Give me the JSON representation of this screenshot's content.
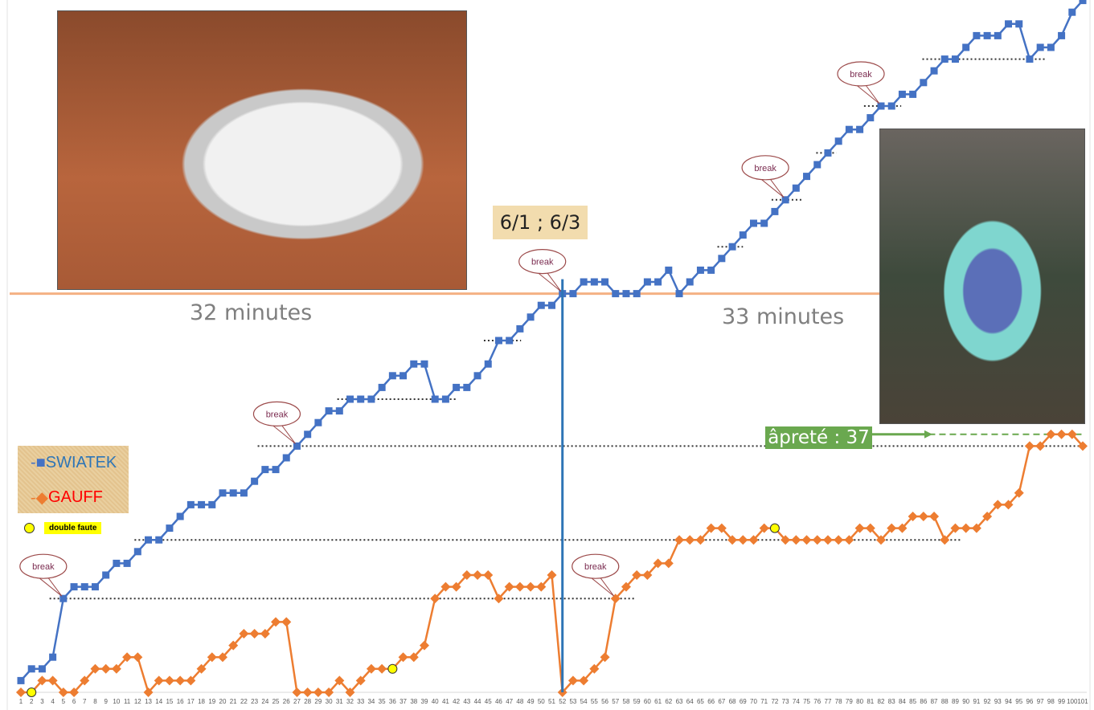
{
  "chart_data": {
    "type": "line",
    "x": [
      1,
      2,
      3,
      4,
      5,
      6,
      7,
      8,
      9,
      10,
      11,
      12,
      13,
      14,
      15,
      16,
      17,
      18,
      19,
      20,
      21,
      22,
      23,
      24,
      25,
      26,
      27,
      28,
      29,
      30,
      31,
      32,
      33,
      34,
      35,
      36,
      37,
      38,
      39,
      40,
      41,
      42,
      43,
      44,
      45,
      46,
      47,
      48,
      49,
      50,
      51,
      52,
      53,
      54,
      55,
      56,
      57,
      58,
      59,
      60,
      61,
      62,
      63,
      64,
      65,
      66,
      67,
      68,
      69,
      70,
      71,
      72,
      73,
      74,
      75,
      76,
      77,
      78,
      79,
      80,
      81,
      82,
      83,
      84,
      85,
      86,
      87,
      88,
      89,
      90,
      91,
      92,
      93,
      94,
      95,
      96,
      97,
      98,
      99,
      100,
      101
    ],
    "series": [
      {
        "name": "SWIATEK",
        "color": "#4472c4",
        "marker": "square",
        "values": [
          1,
          2,
          2,
          3,
          8,
          9,
          9,
          9,
          10,
          11,
          11,
          12,
          13,
          13,
          14,
          15,
          16,
          16,
          16,
          17,
          17,
          17,
          18,
          19,
          19,
          20,
          21,
          22,
          23,
          24,
          24,
          25,
          25,
          25,
          26,
          27,
          27,
          28,
          28,
          25,
          25,
          26,
          26,
          27,
          28,
          30,
          30,
          31,
          32,
          33,
          33,
          34,
          34,
          35,
          35,
          35,
          34,
          34,
          34,
          35,
          35,
          36,
          34,
          35,
          36,
          36,
          37,
          38,
          39,
          40,
          40,
          41,
          42,
          43,
          44,
          45,
          46,
          47,
          48,
          48,
          49,
          50,
          50,
          51,
          51,
          52,
          53,
          54,
          54,
          55,
          56,
          56,
          56,
          57,
          57,
          54,
          55,
          55,
          56,
          58,
          59
        ]
      },
      {
        "name": "GAUFF",
        "color": "#ed7d31",
        "marker": "diamond",
        "values": [
          0,
          0,
          1,
          1,
          0,
          0,
          1,
          2,
          2,
          2,
          3,
          3,
          0,
          1,
          1,
          1,
          1,
          2,
          3,
          3,
          4,
          5,
          5,
          5,
          6,
          6,
          0,
          0,
          0,
          0,
          1,
          0,
          1,
          2,
          2,
          2,
          3,
          3,
          4,
          8,
          9,
          9,
          10,
          10,
          10,
          8,
          9,
          9,
          9,
          9,
          10,
          0,
          1,
          1,
          2,
          3,
          8,
          9,
          10,
          10,
          11,
          11,
          13,
          13,
          13,
          14,
          14,
          13,
          13,
          13,
          14,
          14,
          13,
          13,
          13,
          13,
          13,
          13,
          13,
          14,
          14,
          13,
          14,
          14,
          15,
          15,
          15,
          13,
          14,
          14,
          14,
          15,
          16,
          16,
          17,
          21,
          21,
          22,
          22,
          22,
          21
        ]
      }
    ],
    "double_faults": [
      {
        "x": 2,
        "y": 0
      },
      {
        "x": 36,
        "y": 2
      },
      {
        "x": 72,
        "y": 14
      }
    ],
    "double_fault_label": "double faute",
    "double_fault_color": "#ffff00",
    "breaks": [
      {
        "series": "SWIATEK",
        "x": 5
      },
      {
        "series": "SWIATEK",
        "x": 27
      },
      {
        "series": "SWIATEK",
        "x": 52
      },
      {
        "series": "SWIATEK",
        "x": 73
      },
      {
        "series": "SWIATEK",
        "x": 82
      },
      {
        "series": "GAUFF",
        "x": 57
      }
    ],
    "break_label": "break",
    "reference_lines": [
      {
        "y": 8,
        "x": [
          3.7,
          58.8
        ]
      },
      {
        "y": 13,
        "x": [
          11.7,
          89.5
        ]
      },
      {
        "y": 21,
        "x": [
          23.3,
          101.2
        ]
      },
      {
        "y": 25,
        "x": [
          30.8,
          42
        ]
      },
      {
        "y": 30,
        "x": [
          44.6,
          48.1
        ]
      },
      {
        "y": 38,
        "x": [
          66.6,
          69
        ]
      },
      {
        "y": 42,
        "x": [
          71.7,
          74.5
        ]
      },
      {
        "y": 46,
        "x": [
          75.9,
          77.8
        ]
      },
      {
        "y": 50,
        "x": [
          80.4,
          83.9
        ]
      },
      {
        "y": 54,
        "x": [
          85.9,
          97.6
        ]
      }
    ],
    "set_line": {
      "y": 34,
      "color": "#f4b183"
    },
    "set_divider": {
      "x": 52,
      "color": "#2e75b6"
    },
    "top_line": {
      "y": 59.3,
      "color": "#548235"
    },
    "apreté_line": {
      "y": 22,
      "x": [
        86.5,
        101
      ],
      "color": "#6aa84f"
    },
    "ylim": [
      0,
      59.5
    ],
    "xlim": [
      1,
      101
    ],
    "grid": false,
    "legend_placement": "left"
  },
  "annotations": {
    "score": "6/1 ; 6/3",
    "set1_duration": "32 minutes",
    "set2_duration": "33 minutes",
    "apreté": "âpreté : 37"
  },
  "legend": {
    "swiatek": "SWIATEK",
    "gauff": "GAUFF",
    "swiatek_color": "#2e75b6",
    "gauff_color": "#ff0000"
  }
}
